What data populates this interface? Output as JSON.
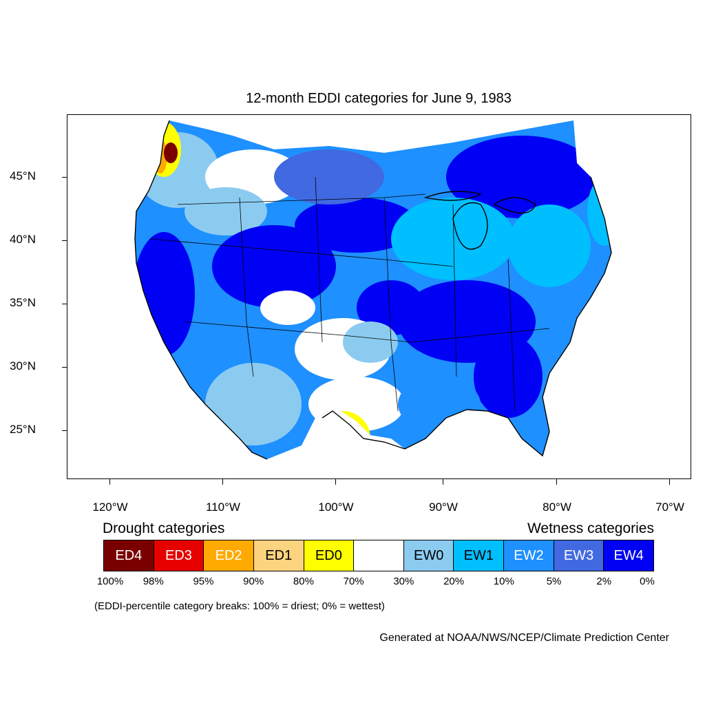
{
  "title": "12-month EDDI categories for June 9, 1983",
  "map": {
    "lat_labels": [
      "45°N",
      "40°N",
      "35°N",
      "30°N",
      "25°N"
    ],
    "lon_labels": [
      "120°W",
      "110°W",
      "100°W",
      "90°W",
      "80°W",
      "70°W"
    ],
    "colors": {
      "ED4": "#7a0000",
      "ED3": "#e60000",
      "ED2": "#ffaa00",
      "ED1": "#fcd37f",
      "ED0": "#ffff00",
      "neutral": "#ffffff",
      "EW0": "#8ccbf0",
      "EW1": "#00bfff",
      "EW2": "#1e90ff",
      "EW3": "#4169e1",
      "EW4": "#0000f5"
    }
  },
  "legend": {
    "drought_title": "Drought categories",
    "wetness_title": "Wetness categories",
    "boxes": [
      {
        "label": "ED4",
        "color": "#7a0000",
        "text_color": "#ffffff"
      },
      {
        "label": "ED3",
        "color": "#e60000",
        "text_color": "#ffffff"
      },
      {
        "label": "ED2",
        "color": "#ffaa00",
        "text_color": "#ffffff"
      },
      {
        "label": "ED1",
        "color": "#fcd37f",
        "text_color": "#000000"
      },
      {
        "label": "ED0",
        "color": "#ffff00",
        "text_color": "#000000"
      },
      {
        "label": "",
        "color": "#ffffff",
        "text_color": "#000000"
      },
      {
        "label": "EW0",
        "color": "#8ccbf0",
        "text_color": "#000000"
      },
      {
        "label": "EW1",
        "color": "#00bfff",
        "text_color": "#000000"
      },
      {
        "label": "EW2",
        "color": "#1e90ff",
        "text_color": "#ffffff"
      },
      {
        "label": "EW3",
        "color": "#4169e1",
        "text_color": "#ffffff"
      },
      {
        "label": "EW4",
        "color": "#0000f5",
        "text_color": "#ffffff"
      }
    ],
    "percentiles": [
      "100%",
      "98%",
      "95%",
      "90%",
      "80%",
      "70%",
      "30%",
      "20%",
      "10%",
      "5%",
      "2%",
      "0%"
    ]
  },
  "note": "(EDDI-percentile category breaks: 100% = driest; 0% = wettest)",
  "credit": "Generated at NOAA/NWS/NCEP/Climate Prediction Center"
}
